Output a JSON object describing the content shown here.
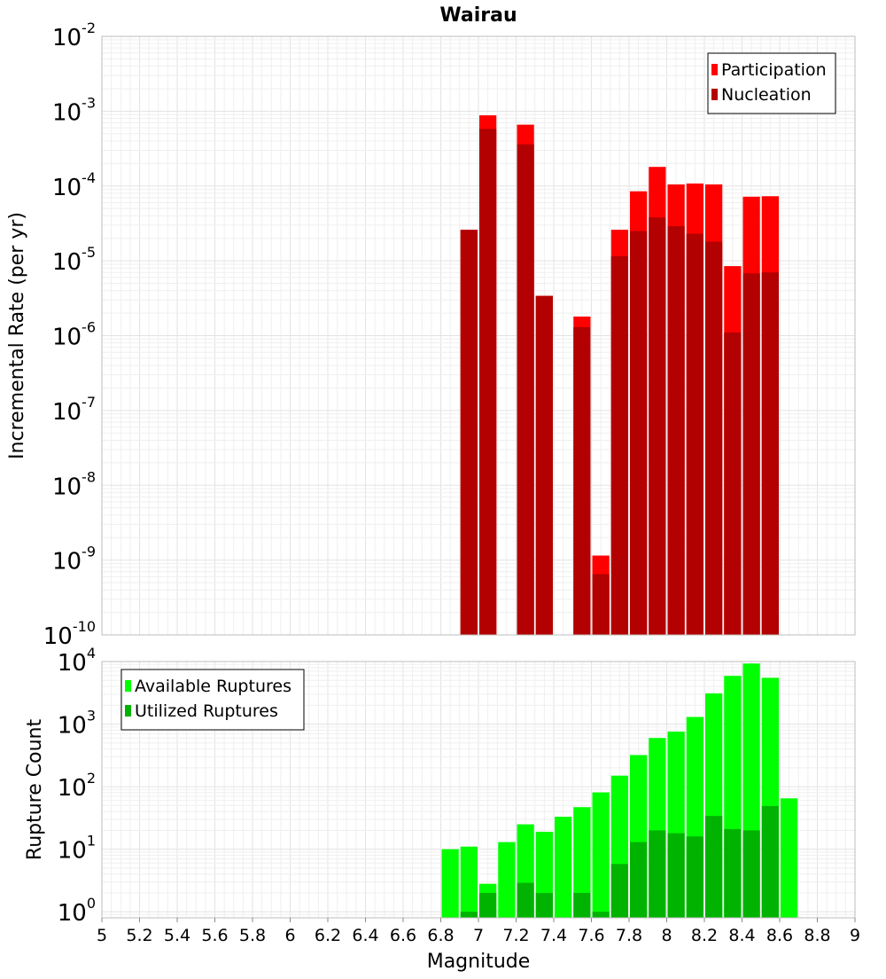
{
  "chart_data": [
    {
      "type": "bar",
      "title": "Wairau",
      "xlabel": "",
      "ylabel": "Incremental Rate (per yr)",
      "xlim": [
        5,
        9
      ],
      "ylim": [
        1e-10,
        0.01
      ],
      "yscale": "log",
      "bar_width": 0.1,
      "grid": true,
      "legend_position": "top-right",
      "x": [
        6.95,
        7.05,
        7.15,
        7.25,
        7.35,
        7.45,
        7.55,
        7.65,
        7.75,
        7.85,
        7.95,
        8.05,
        8.15,
        8.25,
        8.35,
        8.45,
        8.55
      ],
      "series": [
        {
          "name": "Participation",
          "color": "#ff0000",
          "values": [
            2.6e-05,
            0.00088,
            null,
            0.00066,
            3.4e-06,
            null,
            1.8e-06,
            1.15e-09,
            2.6e-05,
            8.5e-05,
            0.00018,
            0.000105,
            0.000108,
            0.000105,
            8.5e-06,
            7.2e-05,
            7.3e-05
          ]
        },
        {
          "name": "Nucleation",
          "color": "#b30000",
          "values": [
            2.6e-05,
            0.00058,
            null,
            0.00036,
            3.4e-06,
            null,
            1.3e-06,
            6.5e-10,
            1.15e-05,
            2.5e-05,
            3.8e-05,
            2.9e-05,
            2.3e-05,
            1.8e-05,
            1.1e-06,
            6.8e-06,
            7e-06
          ]
        }
      ],
      "ytick_exponents": [
        "-10",
        "-9",
        "-8",
        "-7",
        "-6",
        "-5",
        "-4",
        "-3",
        "-2"
      ]
    },
    {
      "type": "bar",
      "title": "",
      "xlabel": "Magnitude",
      "ylabel": "Rupture Count",
      "xlim": [
        5,
        9
      ],
      "ylim": [
        0.8,
        10000
      ],
      "yscale": "log",
      "bar_width": 0.1,
      "grid": true,
      "legend_position": "top-left",
      "x": [
        6.85,
        6.95,
        7.05,
        7.15,
        7.25,
        7.35,
        7.45,
        7.55,
        7.65,
        7.75,
        7.85,
        7.95,
        8.05,
        8.15,
        8.25,
        8.35,
        8.45,
        8.55,
        8.65
      ],
      "series": [
        {
          "name": "Available Ruptures",
          "color": "#00ff00",
          "values": [
            10,
            11,
            2.8,
            13,
            25,
            19,
            33,
            47,
            81,
            150,
            320,
            600,
            760,
            1300,
            3100,
            5900,
            9300,
            5500,
            65
          ]
        },
        {
          "name": "Utilized Ruptures",
          "color": "#00b300",
          "values": [
            null,
            1,
            2,
            null,
            2.9,
            2,
            null,
            2,
            1,
            5.8,
            13,
            20,
            18,
            16,
            34,
            21,
            20,
            49,
            null
          ]
        }
      ],
      "ytick_exponents": [
        "0",
        "1",
        "2",
        "3",
        "4"
      ],
      "xticks": [
        "5",
        "5.2",
        "5.4",
        "5.6",
        "5.8",
        "6",
        "6.2",
        "6.4",
        "6.6",
        "6.8",
        "7",
        "7.2",
        "7.4",
        "7.6",
        "7.8",
        "8",
        "8.2",
        "8.4",
        "8.6",
        "8.8",
        "9"
      ]
    }
  ]
}
